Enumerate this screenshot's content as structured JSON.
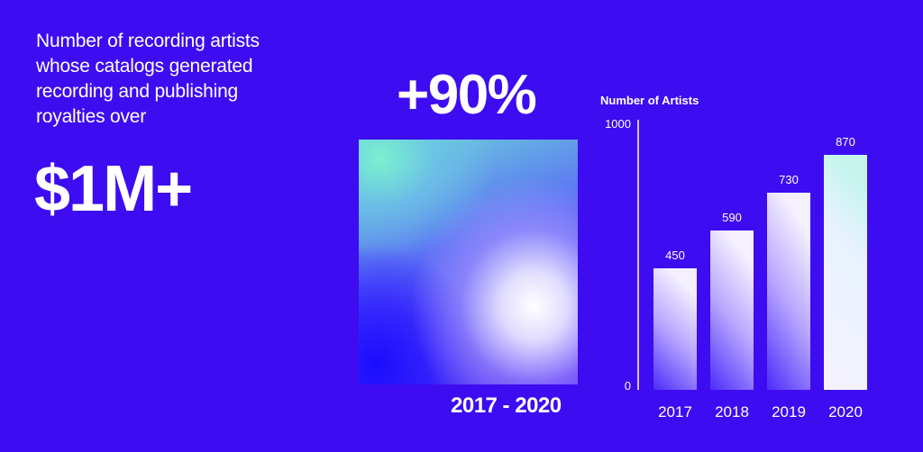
{
  "headline": "Number of recording artists whose catalogs generated recording and publishing royalties over",
  "amount": "$1M+",
  "growth": "+90%",
  "range": "2017 - 2020",
  "colors": {
    "background": "#3d0cf0",
    "text": "#ffffff"
  },
  "chart_data": {
    "type": "bar",
    "ylabel": "Number of Artists",
    "xlabel": "",
    "categories": [
      "2017",
      "2018",
      "2019",
      "2020"
    ],
    "values": [
      450,
      590,
      730,
      870
    ],
    "value_labels": [
      "450",
      "590",
      "730",
      "870"
    ],
    "ylim": [
      0,
      1000
    ],
    "yticks": [
      "0",
      "1000"
    ],
    "grid": false,
    "legend": "none"
  }
}
